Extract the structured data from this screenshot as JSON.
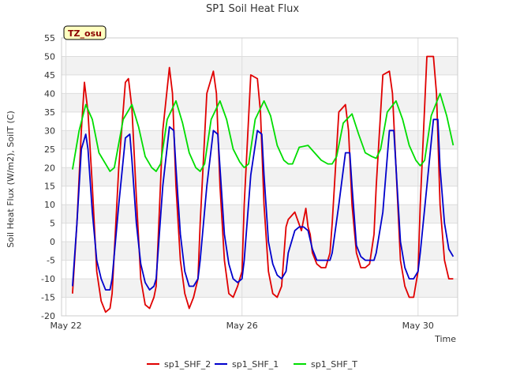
{
  "chart_data": {
    "type": "line",
    "title": "SP1 Soil Heat Flux",
    "xlabel": "Time",
    "ylabel": "Soil Heat Flux (W/m2), SoilT (C)",
    "site_badge": "TZ_osu",
    "ylim": [
      -20,
      55
    ],
    "yticks": [
      -20,
      -15,
      -10,
      -5,
      0,
      5,
      10,
      15,
      20,
      25,
      30,
      35,
      40,
      45,
      50,
      55
    ],
    "xlim": [
      -0.1,
      8.9
    ],
    "xticks": [
      {
        "value": 0,
        "label": "May 22"
      },
      {
        "value": 4,
        "label": "May 26"
      },
      {
        "value": 8,
        "label": "May 30"
      }
    ],
    "grid": true,
    "legend_position": "bottom",
    "series": [
      {
        "name": "sp1_SHF_2",
        "color": "#e00000",
        "x": [
          0.15,
          0.25,
          0.35,
          0.42,
          0.5,
          0.6,
          0.7,
          0.8,
          0.9,
          1.0,
          1.05,
          1.2,
          1.35,
          1.42,
          1.5,
          1.6,
          1.7,
          1.8,
          1.9,
          2.0,
          2.05,
          2.2,
          2.35,
          2.42,
          2.5,
          2.6,
          2.7,
          2.8,
          2.9,
          3.0,
          3.05,
          3.2,
          3.35,
          3.42,
          3.5,
          3.6,
          3.7,
          3.8,
          3.9,
          4.0,
          4.05,
          4.2,
          4.35,
          4.42,
          4.5,
          4.6,
          4.7,
          4.8,
          4.9,
          5.0,
          5.05,
          5.2,
          5.35,
          5.45,
          5.5,
          5.55,
          5.6,
          5.7,
          5.8,
          5.9,
          6.0,
          6.05,
          6.2,
          6.35,
          6.42,
          6.5,
          6.6,
          6.7,
          6.8,
          6.9,
          7.0,
          7.05,
          7.2,
          7.35,
          7.42,
          7.5,
          7.6,
          7.7,
          7.8,
          7.9,
          8.0,
          8.05,
          8.2,
          8.35,
          8.42,
          8.5,
          8.6,
          8.7,
          8.8
        ],
        "y": [
          -14,
          5,
          30,
          43,
          35,
          15,
          -8,
          -16,
          -19,
          -18,
          -14,
          20,
          43,
          44,
          36,
          12,
          -10,
          -17,
          -18,
          -15,
          -12,
          30,
          47,
          40,
          15,
          -5,
          -14,
          -18,
          -15,
          -10,
          5,
          40,
          46,
          40,
          15,
          -5,
          -14,
          -15,
          -12,
          -8,
          10,
          45,
          44,
          35,
          10,
          -8,
          -14,
          -15,
          -12,
          4,
          6,
          8,
          3,
          9,
          4,
          2,
          -3,
          -6,
          -7,
          -7,
          -3,
          5,
          35,
          37,
          30,
          10,
          -3,
          -7,
          -7,
          -6,
          2,
          15,
          45,
          46,
          40,
          20,
          -5,
          -12,
          -15,
          -15,
          -8,
          10,
          50,
          50,
          40,
          10,
          -5,
          -10,
          -10
        ]
      },
      {
        "name": "sp1_SHF_1",
        "color": "#0000cc",
        "x": [
          0.15,
          0.25,
          0.35,
          0.45,
          0.5,
          0.6,
          0.7,
          0.8,
          0.9,
          1.0,
          1.05,
          1.2,
          1.35,
          1.45,
          1.5,
          1.6,
          1.7,
          1.8,
          1.9,
          2.0,
          2.05,
          2.2,
          2.35,
          2.45,
          2.5,
          2.6,
          2.7,
          2.8,
          2.9,
          3.0,
          3.05,
          3.2,
          3.35,
          3.45,
          3.5,
          3.6,
          3.7,
          3.8,
          3.9,
          4.0,
          4.05,
          4.2,
          4.35,
          4.45,
          4.5,
          4.6,
          4.7,
          4.8,
          4.9,
          5.0,
          5.05,
          5.2,
          5.3,
          5.4,
          5.5,
          5.6,
          5.7,
          5.8,
          5.9,
          6.0,
          6.05,
          6.2,
          6.35,
          6.45,
          6.5,
          6.6,
          6.7,
          6.8,
          6.9,
          7.0,
          7.05,
          7.2,
          7.35,
          7.45,
          7.5,
          7.6,
          7.7,
          7.8,
          7.9,
          8.0,
          8.05,
          8.2,
          8.35,
          8.45,
          8.5,
          8.6,
          8.7,
          8.8
        ],
        "y": [
          -12,
          5,
          25,
          29,
          25,
          8,
          -5,
          -10,
          -13,
          -13,
          -10,
          10,
          28,
          29,
          22,
          5,
          -6,
          -11,
          -13,
          -12,
          -10,
          15,
          31,
          30,
          20,
          2,
          -8,
          -12,
          -12,
          -10,
          -5,
          15,
          30,
          29,
          20,
          2,
          -6,
          -10,
          -11,
          -10,
          -5,
          18,
          30,
          29,
          18,
          0,
          -6,
          -9,
          -10,
          -8,
          -3,
          3,
          4,
          4,
          3,
          -2,
          -5,
          -5,
          -5,
          -5,
          -3,
          10,
          24,
          24,
          15,
          -1,
          -4,
          -5,
          -5,
          -5,
          -3,
          8,
          30,
          30,
          20,
          0,
          -7,
          -10,
          -10,
          -8,
          -3,
          15,
          33,
          33,
          20,
          5,
          -2,
          -4
        ]
      },
      {
        "name": "sp1_SHF_T",
        "color": "#00dd00",
        "x": [
          0.15,
          0.3,
          0.45,
          0.6,
          0.75,
          0.9,
          1.0,
          1.1,
          1.3,
          1.5,
          1.65,
          1.8,
          1.95,
          2.05,
          2.15,
          2.3,
          2.5,
          2.65,
          2.8,
          2.95,
          3.05,
          3.15,
          3.3,
          3.5,
          3.65,
          3.8,
          3.95,
          4.05,
          4.15,
          4.3,
          4.5,
          4.65,
          4.8,
          4.95,
          5.05,
          5.15,
          5.3,
          5.5,
          5.65,
          5.8,
          5.95,
          6.05,
          6.15,
          6.3,
          6.5,
          6.65,
          6.8,
          6.95,
          7.05,
          7.15,
          7.3,
          7.5,
          7.65,
          7.8,
          7.95,
          8.05,
          8.15,
          8.3,
          8.5,
          8.65,
          8.8
        ],
        "y": [
          19.5,
          30,
          37,
          33,
          24,
          21,
          19,
          20,
          33,
          37,
          31,
          23,
          20,
          19,
          21,
          33,
          38,
          32,
          24,
          20,
          19,
          21,
          33,
          38,
          33,
          25,
          21.5,
          20,
          21,
          33,
          38,
          34,
          26,
          22,
          21,
          21,
          25.5,
          26,
          24,
          22,
          21,
          21,
          23,
          32,
          34.5,
          29,
          24,
          23,
          22.5,
          25,
          35,
          38,
          33,
          26,
          22,
          20.5,
          22,
          34,
          40,
          34,
          26
        ]
      }
    ]
  }
}
